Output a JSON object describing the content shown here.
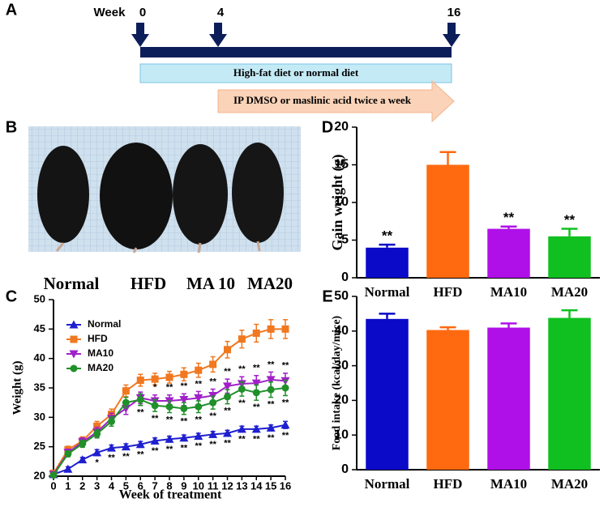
{
  "panel_labels": [
    "A",
    "B",
    "C",
    "D",
    "E"
  ],
  "timeline": {
    "label": "Week",
    "weeks": [
      0,
      4,
      16
    ],
    "diet": "High-fat diet  or normal diet",
    "treatment": "IP  DMSO or maslinic acid twice a week"
  },
  "photo": {
    "labels": [
      "Normal",
      "HFD",
      "MA 10",
      "MA20"
    ]
  },
  "chart_data": [
    {
      "type": "line",
      "x_label": "Week of treatment",
      "y_label": "Weight (g)",
      "x": [
        0,
        1,
        2,
        3,
        4,
        5,
        6,
        7,
        8,
        9,
        10,
        11,
        12,
        13,
        14,
        15,
        16
      ],
      "xlim": [
        0,
        16
      ],
      "xticks": [
        0,
        1,
        2,
        3,
        4,
        5,
        6,
        7,
        8,
        9,
        10,
        11,
        12,
        13,
        14,
        15,
        16
      ],
      "ylim": [
        20,
        50
      ],
      "yticks": [
        20,
        25,
        30,
        35,
        40,
        45,
        50
      ],
      "legend": "upper left",
      "series": [
        {
          "name": "Normal",
          "color": "#1f1fd0",
          "marker": "triangle-up",
          "values": [
            20.3,
            21.2,
            22.8,
            24,
            24.8,
            25,
            25.4,
            26,
            26.3,
            26.5,
            26.8,
            27.1,
            27.3,
            28,
            28,
            28.2,
            28.7
          ],
          "errors": [
            0.3,
            0.4,
            0.4,
            0.5,
            0.5,
            0.5,
            0.5,
            0.5,
            0.5,
            0.5,
            0.5,
            0.5,
            0.5,
            0.5,
            0.5,
            0.5,
            0.6
          ],
          "significance_position": "below",
          "significance": [
            null,
            null,
            null,
            "*",
            "**",
            "**",
            "**",
            "**",
            "**",
            "**",
            "**",
            "**",
            "**",
            "**",
            "**",
            "**",
            "**"
          ]
        },
        {
          "name": "HFD",
          "color": "#f07820",
          "marker": "square",
          "values": [
            20.5,
            24.5,
            26,
            28.5,
            30.5,
            34.5,
            36.3,
            36.5,
            36.8,
            37.3,
            38,
            39,
            41.5,
            43.3,
            44.3,
            45,
            45
          ],
          "errors": [
            0.4,
            0.6,
            0.7,
            0.8,
            0.9,
            1,
            1,
            1,
            1,
            1.1,
            1.2,
            1.3,
            1.4,
            1.5,
            1.5,
            1.6,
            1.6
          ]
        },
        {
          "name": "MA10",
          "color": "#a020c8",
          "marker": "triangle-down",
          "values": [
            20.3,
            24,
            25.8,
            27.5,
            29.8,
            31.5,
            33.3,
            32.8,
            32.8,
            33,
            33.3,
            33.7,
            35.3,
            35.7,
            35.8,
            36.4,
            36.2
          ],
          "errors": [
            0.3,
            0.6,
            0.7,
            0.8,
            0.9,
            1,
            1,
            1,
            1,
            1,
            1.1,
            1.1,
            1.2,
            1.2,
            1.3,
            1.3,
            1.3
          ],
          "significance_position": "above",
          "significance": [
            null,
            null,
            null,
            null,
            null,
            null,
            null,
            "*",
            "**",
            "**",
            "**",
            "**",
            "**",
            "**",
            "**",
            "**",
            "**"
          ]
        },
        {
          "name": "MA20",
          "color": "#20902a",
          "marker": "circle",
          "values": [
            20.2,
            23.8,
            25.5,
            27.2,
            29.3,
            32.5,
            33,
            32,
            31.8,
            31.5,
            31.8,
            32.5,
            33.5,
            34.8,
            34.2,
            34.7,
            35
          ],
          "errors": [
            0.3,
            0.5,
            0.6,
            0.7,
            0.8,
            0.9,
            1,
            1,
            1,
            1,
            1,
            1.1,
            1.2,
            1.2,
            1.3,
            1.3,
            1.3
          ],
          "significance_position": "below",
          "significance": [
            null,
            null,
            null,
            null,
            null,
            null,
            "**",
            "**",
            "**",
            "**",
            "**",
            "**",
            "**",
            "**",
            "**",
            "**",
            "**"
          ]
        }
      ]
    },
    {
      "type": "bar",
      "y_label": "Gain weight (g)",
      "categories": [
        "Normal",
        "HFD",
        "MA10",
        "MA20"
      ],
      "values": [
        4,
        15,
        6.5,
        5.5
      ],
      "errors": [
        0.4,
        1.7,
        0.3,
        1
      ],
      "annotations": [
        "**",
        null,
        "**",
        "**"
      ],
      "colors": [
        "#0a0ac8",
        "#ff6a10",
        "#b010e8",
        "#10c020"
      ],
      "ylim": [
        0,
        20
      ],
      "yticks": [
        0,
        5,
        10,
        15,
        20
      ]
    },
    {
      "type": "bar",
      "y_label": "Food intake (kcal/day/mice)",
      "categories": [
        "Normal",
        "HFD",
        "MA10",
        "MA20"
      ],
      "values": [
        43.5,
        40.3,
        41,
        43.8
      ],
      "errors": [
        1.5,
        0.8,
        1.2,
        2.2
      ],
      "colors": [
        "#0a0ac8",
        "#ff6a10",
        "#b010e8",
        "#10c020"
      ],
      "ylim": [
        0,
        50
      ],
      "yticks": [
        0,
        10,
        20,
        30,
        40,
        50
      ]
    }
  ]
}
